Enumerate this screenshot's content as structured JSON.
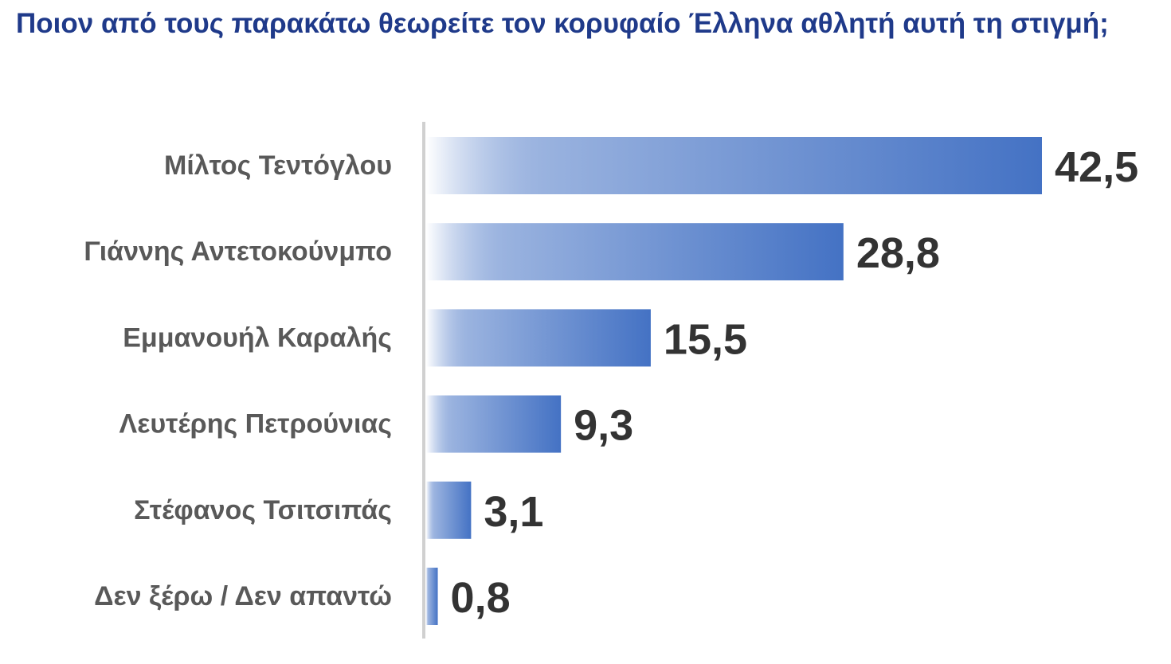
{
  "chart_data": {
    "type": "bar",
    "orientation": "horizontal",
    "title": "Ποιον από τους παρακάτω θεωρείτε τον κορυφαίο Έλληνα αθλητή αυτή τη στιγμή;",
    "categories": [
      "Μίλτος Τεντόγλου",
      "Γιάννης Αντετοκούνμπο",
      "Εμμανουήλ Καραλής",
      "Λευτέρης Πετρούνιας",
      "Στέφανος Τσιτσιπάς",
      "Δεν ξέρω / Δεν απαντώ"
    ],
    "values": [
      42.5,
      28.8,
      15.5,
      9.3,
      3.1,
      0.8
    ],
    "value_labels": [
      "42,5",
      "28,8",
      "15,5",
      "9,3",
      "3,1",
      "0,8"
    ],
    "xlabel": "",
    "ylabel": "",
    "xlim": [
      0,
      42.5
    ],
    "grid": false,
    "legend": "none",
    "colors": {
      "title": "#1f3a8a",
      "bar": "#4472c4",
      "bar_fade": "#ffffff",
      "axis": "#d0d0d0",
      "category_text": "#595959",
      "value_text": "#333333"
    }
  }
}
